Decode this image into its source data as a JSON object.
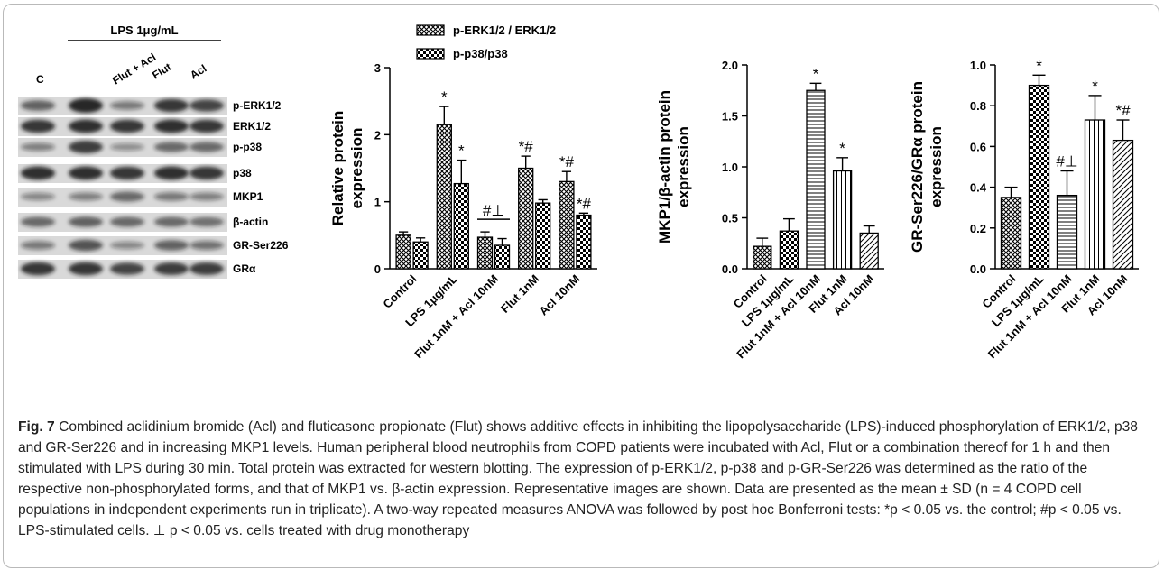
{
  "figure": {
    "caption_label": "Fig. 7",
    "caption_text": " Combined aclidinium bromide (Acl) and fluticasone propionate (Flut) shows additive effects in inhibiting the lipopolysaccharide (LPS)-induced phosphorylation of ERK1/2, p38 and GR-Ser226 and in increasing MKP1 levels. Human peripheral blood neutrophils from COPD patients were incubated with Acl, Flut or a combination thereof for 1 h and then stimulated with LPS during 30 min. Total protein was extracted for western blotting. The expression of p-ERK1/2, p-p38 and p-GR-Ser226 was determined as the ratio of the respective non-phosphorylated forms, and that of MKP1 vs. β-actin expression. Representative images are shown. Data are presented as the mean ± SD (n = 4 COPD cell populations in independent experiments run in triplicate). A two-way repeated measures ANOVA was followed by post hoc Bonferroni tests: *p < 0.05 vs. the control; #p < 0.05 vs. LPS-stimulated cells. ⊥ p < 0.05 vs. cells treated with drug monotherapy"
  },
  "blot": {
    "treatment_label": "LPS 1μg/mL",
    "lanes": [
      "C",
      "Flut + Acl",
      "Flut",
      "Acl"
    ],
    "bands": [
      "p-ERK1/2",
      "ERK1/2",
      "p-p38",
      "p38",
      "MKP1",
      "β-actin",
      "GR-Ser226",
      "GRα"
    ]
  },
  "chart_data": [
    {
      "type": "bar",
      "ylabel": "Relative protein expression",
      "ylim": [
        0,
        3
      ],
      "yticks": [
        "0",
        "1",
        "2",
        "3"
      ],
      "categories": [
        "Control",
        "LPS 1μg/mL",
        "Flut 1nM + Acl 10nM",
        "Flut 1nM",
        "Acl 10nM"
      ],
      "legend_position": "top",
      "series": [
        {
          "name": "p-ERK1/2 / ERK1/2",
          "values": [
            0.5,
            2.15,
            0.47,
            1.5,
            1.3
          ],
          "errors": [
            0.05,
            0.27,
            0.08,
            0.18,
            0.15
          ],
          "annotations": [
            "",
            "*",
            "",
            "*#",
            "*#"
          ]
        },
        {
          "name": "p-p38/p38",
          "values": [
            0.4,
            1.27,
            0.35,
            0.98,
            0.8
          ],
          "errors": [
            0.06,
            0.35,
            0.1,
            0.05,
            0.03
          ],
          "annotations": [
            "",
            "*",
            "",
            "",
            "*#"
          ]
        }
      ],
      "group_annotation": {
        "category_index": 2,
        "text": "#⊥"
      }
    },
    {
      "type": "bar",
      "ylabel": "MKP1/β-actin protein expression",
      "ylim": [
        0,
        2.0
      ],
      "yticks": [
        "0.0",
        "0.5",
        "1.0",
        "1.5",
        "2.0"
      ],
      "categories": [
        "Control",
        "LPS 1μg/mL",
        "Flut 1nM + Acl 10nM",
        "Flut 1nM",
        "Acl 10nM"
      ],
      "values": [
        0.22,
        0.37,
        1.75,
        0.96,
        0.35
      ],
      "errors": [
        0.08,
        0.12,
        0.07,
        0.13,
        0.07
      ],
      "annotations": [
        "",
        "",
        "*",
        "*",
        ""
      ]
    },
    {
      "type": "bar",
      "ylabel": "GR-Ser226/GRα protein expression",
      "ylim": [
        0,
        1.0
      ],
      "yticks": [
        "0.0",
        "0.2",
        "0.4",
        "0.6",
        "0.8",
        "1.0"
      ],
      "categories": [
        "Control",
        "LPS 1μg/mL",
        "Flut 1nM + Acl 10nM",
        "Flut 1nM",
        "Acl 10nM"
      ],
      "values": [
        0.35,
        0.9,
        0.36,
        0.73,
        0.63
      ],
      "errors": [
        0.05,
        0.05,
        0.12,
        0.12,
        0.1
      ],
      "annotations": [
        "",
        "*",
        "#⊥",
        "*",
        "*#"
      ]
    }
  ]
}
